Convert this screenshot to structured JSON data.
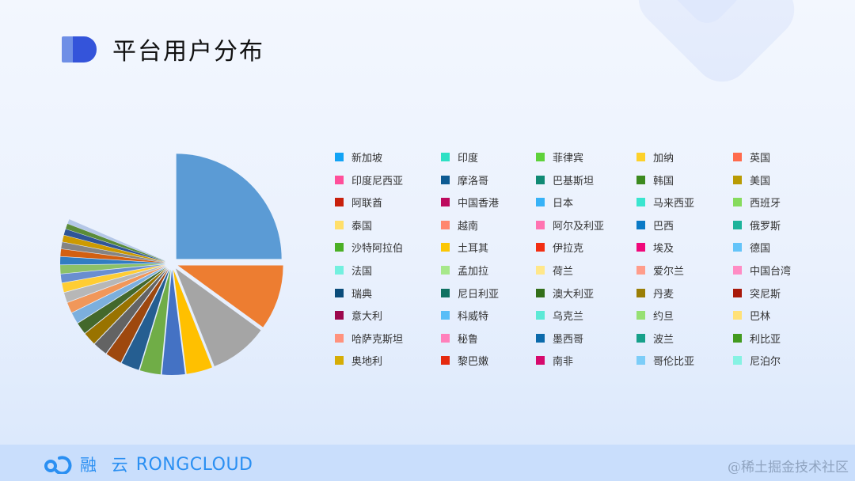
{
  "header": {
    "title": "平台用户分布"
  },
  "footer": {
    "brand_cn": "融 云",
    "brand_en": "RONGCLOUD",
    "watermark": "@稀土掘金技术社区"
  },
  "chart_data": {
    "type": "pie",
    "title": "平台用户分布",
    "legend_position": "right",
    "legend": [
      {
        "label": "新加坡",
        "color": "#12a3f5"
      },
      {
        "label": "印度",
        "color": "#2de0c4"
      },
      {
        "label": "菲律宾",
        "color": "#5ed23a"
      },
      {
        "label": "加纳",
        "color": "#fdd12a"
      },
      {
        "label": "英国",
        "color": "#ff6b4d"
      },
      {
        "label": "印度尼西亚",
        "color": "#ff4f9a"
      },
      {
        "label": "摩洛哥",
        "color": "#0d5b93"
      },
      {
        "label": "巴基斯坦",
        "color": "#108a74"
      },
      {
        "label": "韩国",
        "color": "#3c8a1f"
      },
      {
        "label": "美国",
        "color": "#b99b04"
      },
      {
        "label": "阿联酋",
        "color": "#c8200c"
      },
      {
        "label": "中国香港",
        "color": "#bd0a5e"
      },
      {
        "label": "日本",
        "color": "#37b2f7"
      },
      {
        "label": "马来西亚",
        "color": "#3ae5cf"
      },
      {
        "label": "西班牙",
        "color": "#86db5d"
      },
      {
        "label": "泰国",
        "color": "#ffdf6a"
      },
      {
        "label": "越南",
        "color": "#ff876f"
      },
      {
        "label": "阿尔及利亚",
        "color": "#ff73b1"
      },
      {
        "label": "巴西",
        "color": "#0a7ac6"
      },
      {
        "label": "俄罗斯",
        "color": "#1cb39b"
      },
      {
        "label": "沙特阿拉伯",
        "color": "#4aaf25"
      },
      {
        "label": "土耳其",
        "color": "#fbc705"
      },
      {
        "label": "伊拉克",
        "color": "#f22e12"
      },
      {
        "label": "埃及",
        "color": "#f0087a"
      },
      {
        "label": "德国",
        "color": "#64c4f9"
      },
      {
        "label": "法国",
        "color": "#73f0df"
      },
      {
        "label": "孟加拉",
        "color": "#a6e88a"
      },
      {
        "label": "荷兰",
        "color": "#ffe78a"
      },
      {
        "label": "爱尔兰",
        "color": "#ff9d8b"
      },
      {
        "label": "中国台湾",
        "color": "#ff8cc4"
      },
      {
        "label": "瑞典",
        "color": "#0a4c7a"
      },
      {
        "label": "尼日利亚",
        "color": "#0e7161"
      },
      {
        "label": "澳大利亚",
        "color": "#336f1a"
      },
      {
        "label": "丹麦",
        "color": "#9a7e06"
      },
      {
        "label": "突尼斯",
        "color": "#a8190a"
      },
      {
        "label": "意大利",
        "color": "#9c084d"
      },
      {
        "label": "科威特",
        "color": "#58bdf7"
      },
      {
        "label": "乌克兰",
        "color": "#5ce9d6"
      },
      {
        "label": "约旦",
        "color": "#96e074"
      },
      {
        "label": "巴林",
        "color": "#ffe178"
      },
      {
        "label": "哈萨克斯坦",
        "color": "#ff927d"
      },
      {
        "label": "秘鲁",
        "color": "#ff80bb"
      },
      {
        "label": "墨西哥",
        "color": "#0b6aab"
      },
      {
        "label": "波兰",
        "color": "#16a08a"
      },
      {
        "label": "利比亚",
        "color": "#429a1f"
      },
      {
        "label": "奥地利",
        "color": "#d6ad05"
      },
      {
        "label": "黎巴嫩",
        "color": "#e52a10"
      },
      {
        "label": "南非",
        "color": "#d6096c"
      },
      {
        "label": "哥伦比亚",
        "color": "#7ccdf8"
      },
      {
        "label": "尼泊尔",
        "color": "#86f2e3"
      }
    ],
    "slices": [
      {
        "value": 25.0,
        "color": "#5b9bd5",
        "r": 133
      },
      {
        "value": 10.0,
        "color": "#ed7d31",
        "r": 133
      },
      {
        "value": 9.0,
        "color": "#a5a5a5",
        "r": 133
      },
      {
        "value": 4.0,
        "color": "#ffc000",
        "r": 133
      },
      {
        "value": 3.5,
        "color": "#4472c4",
        "r": 133
      },
      {
        "value": 3.2,
        "color": "#70ad47",
        "r": 133
      },
      {
        "value": 2.8,
        "color": "#255e91",
        "r": 133
      },
      {
        "value": 2.5,
        "color": "#9e480e",
        "r": 133
      },
      {
        "value": 2.2,
        "color": "#636363",
        "r": 133
      },
      {
        "value": 2.0,
        "color": "#997300",
        "r": 133
      },
      {
        "value": 1.8,
        "color": "#43682b",
        "r": 133
      },
      {
        "value": 1.7,
        "color": "#7cafdd",
        "r": 133
      },
      {
        "value": 1.6,
        "color": "#f1975a",
        "r": 133
      },
      {
        "value": 1.5,
        "color": "#b7b7b7",
        "r": 133
      },
      {
        "value": 1.4,
        "color": "#ffcd33",
        "r": 133
      },
      {
        "value": 1.3,
        "color": "#698ed0",
        "r": 133
      },
      {
        "value": 1.3,
        "color": "#8cc168",
        "r": 133
      },
      {
        "value": 1.2,
        "color": "#327dc2",
        "r": 133
      },
      {
        "value": 1.1,
        "color": "#d26012",
        "r": 133
      },
      {
        "value": 1.0,
        "color": "#848484",
        "r": 133
      },
      {
        "value": 1.0,
        "color": "#cc9a00",
        "r": 133
      },
      {
        "value": 0.9,
        "color": "#2f5597",
        "r": 133
      },
      {
        "value": 0.8,
        "color": "#5b8c38",
        "r": 133
      },
      {
        "value": 0.7,
        "color": "#b4c7e7",
        "r": 133
      }
    ],
    "center": [
      217,
      333
    ],
    "explode_gap": 8,
    "note": "Slice values estimated from pixel angles; total shown covers ~83% of circle (remaining slices too thin/gap)."
  }
}
